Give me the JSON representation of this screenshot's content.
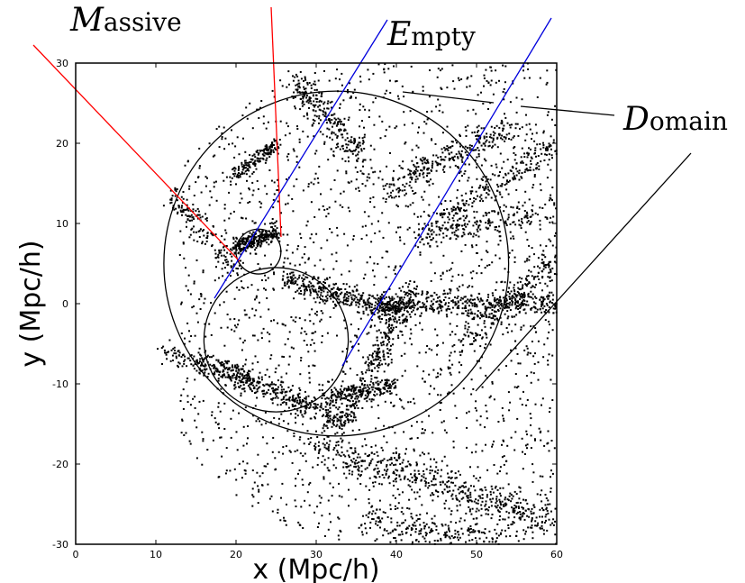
{
  "chart_data": {
    "type": "scatter",
    "xlabel": "x (Mpc/h)",
    "ylabel": "y (Mpc/h)",
    "xlim": [
      0,
      60
    ],
    "ylim": [
      -30,
      30
    ],
    "x_ticks": [
      0,
      10,
      20,
      30,
      40,
      50,
      60
    ],
    "y_ticks": [
      -30,
      -20,
      -10,
      0,
      10,
      20,
      30
    ],
    "grid": false,
    "annotations": [
      {
        "initial": "M",
        "rest": "assive",
        "text": "Massive"
      },
      {
        "initial": "E",
        "rest": "mpty",
        "text": "Empty"
      },
      {
        "initial": "D",
        "rest": "omain",
        "text": "Domain"
      }
    ],
    "circles": [
      {
        "name": "Domain",
        "cx": 32.5,
        "cy": 5,
        "r": 21.5
      },
      {
        "name": "Massive",
        "cx": 22.8,
        "cy": 6.5,
        "r": 2.8
      },
      {
        "name": "Empty",
        "cx": 25,
        "cy": -4.5,
        "r": 9
      }
    ],
    "colors": {
      "massive_lines": "#ff0000",
      "empty_lines": "#0000dd",
      "points": "#000000",
      "circles": "#000000"
    }
  }
}
